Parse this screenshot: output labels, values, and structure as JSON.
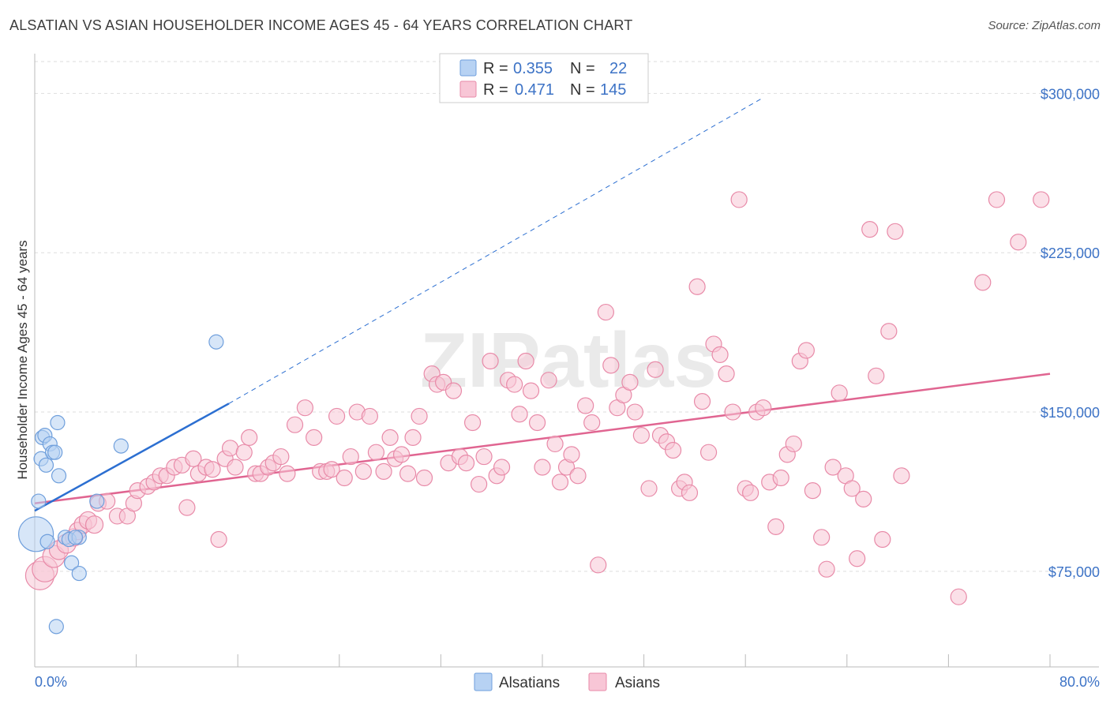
{
  "title": "ALSATIAN VS ASIAN HOUSEHOLDER INCOME AGES 45 - 64 YEARS CORRELATION CHART",
  "source": "Source: ZipAtlas.com",
  "watermark": "ZIPatlas",
  "colors": {
    "alsatian_fill": "#b7d2f3",
    "alsatian_stroke": "#6f9fdc",
    "alsatian_line": "#2c6fd1",
    "asian_fill": "#f8c6d6",
    "asian_stroke": "#e88aa8",
    "asian_line": "#e06591",
    "label_blue": "#3d73c6"
  },
  "legend_top": {
    "rows": [
      {
        "r_label": "R =",
        "r_value": "0.355",
        "n_label": "N =",
        "n_value": "22"
      },
      {
        "r_label": "R =",
        "r_value": "0.471",
        "n_label": "N =",
        "n_value": "145"
      }
    ]
  },
  "legend_bottom": [
    "Alsatians",
    "Asians"
  ],
  "chart_data": {
    "type": "scatter",
    "title": "ALSATIAN VS ASIAN HOUSEHOLDER INCOME AGES 45 - 64 YEARS CORRELATION CHART",
    "xlabel": "",
    "ylabel": "Householder Income Ages 45 - 64 years",
    "xlim": [
      0,
      80
    ],
    "ylim": [
      30000,
      315000
    ],
    "x_tick_labels": [
      "0.0%",
      "80.0%"
    ],
    "y_ticks": [
      75000,
      150000,
      225000,
      300000
    ],
    "y_tick_labels": [
      "$75,000",
      "$150,000",
      "$225,000",
      "$300,000"
    ],
    "grid": true,
    "series": [
      {
        "name": "Alsatians",
        "r": 0.355,
        "n": 22,
        "trend": {
          "x0": 0,
          "y0": 103500,
          "x1": 15.3,
          "y1": 154000,
          "dashed_to_x": 57.4,
          "dashed_to_y": 298000
        },
        "points": [
          [
            0.1,
            92500,
            22
          ],
          [
            0.3,
            108000,
            9
          ],
          [
            0.5,
            128000,
            9
          ],
          [
            0.6,
            138000,
            9
          ],
          [
            0.9,
            125000,
            9
          ],
          [
            0.8,
            139000,
            9
          ],
          [
            1.2,
            135000,
            9
          ],
          [
            1.4,
            131000,
            9
          ],
          [
            1.6,
            131000,
            9
          ],
          [
            1.8,
            145000,
            9
          ],
          [
            1.9,
            120000,
            9
          ],
          [
            1.0,
            89000,
            9
          ],
          [
            2.4,
            91000,
            9
          ],
          [
            2.7,
            90000,
            9
          ],
          [
            2.9,
            79000,
            9
          ],
          [
            3.5,
            91000,
            9
          ],
          [
            3.5,
            74000,
            9
          ],
          [
            1.7,
            49000,
            9
          ],
          [
            4.9,
            108000,
            9
          ],
          [
            6.8,
            134000,
            9
          ],
          [
            14.3,
            183000,
            9
          ],
          [
            3.2,
            91000,
            9
          ]
        ]
      },
      {
        "name": "Asians",
        "r": 0.471,
        "n": 145,
        "trend": {
          "x0": 0,
          "y0": 107000,
          "x1": 80,
          "y1": 168000
        },
        "points": [
          [
            0.4,
            73000,
            18
          ],
          [
            0.8,
            76000,
            16
          ],
          [
            1.5,
            82000,
            14
          ],
          [
            1.9,
            85000,
            12
          ],
          [
            2.5,
            88000,
            12
          ],
          [
            3.1,
            91000,
            11
          ],
          [
            3.4,
            94000,
            11
          ],
          [
            3.8,
            97000,
            11
          ],
          [
            4.2,
            99000,
            11
          ],
          [
            4.7,
            97000,
            11
          ],
          [
            5.0,
            107000,
            10
          ],
          [
            5.7,
            108000,
            10
          ],
          [
            6.5,
            101000,
            10
          ],
          [
            7.3,
            101000,
            10
          ],
          [
            7.8,
            107000,
            10
          ],
          [
            8.1,
            113000,
            10
          ],
          [
            8.9,
            115000,
            10
          ],
          [
            9.4,
            117000,
            10
          ],
          [
            9.9,
            120000,
            10
          ],
          [
            10.4,
            120000,
            10
          ],
          [
            11.0,
            124000,
            10
          ],
          [
            11.6,
            125000,
            10
          ],
          [
            12.0,
            105000,
            10
          ],
          [
            12.5,
            128000,
            10
          ],
          [
            12.9,
            121000,
            10
          ],
          [
            13.5,
            124000,
            10
          ],
          [
            14.0,
            123000,
            10
          ],
          [
            14.5,
            90000,
            10
          ],
          [
            15.0,
            128000,
            10
          ],
          [
            15.4,
            133000,
            10
          ],
          [
            15.8,
            124000,
            10
          ],
          [
            16.5,
            131000,
            10
          ],
          [
            16.9,
            138000,
            10
          ],
          [
            17.4,
            121000,
            10
          ],
          [
            17.8,
            121000,
            10
          ],
          [
            18.4,
            124000,
            10
          ],
          [
            18.8,
            126000,
            10
          ],
          [
            19.4,
            129000,
            10
          ],
          [
            19.9,
            121000,
            10
          ],
          [
            20.5,
            144000,
            10
          ],
          [
            21.3,
            152000,
            10
          ],
          [
            22.0,
            138000,
            10
          ],
          [
            22.5,
            122000,
            10
          ],
          [
            23.0,
            122000,
            10
          ],
          [
            23.4,
            123000,
            10
          ],
          [
            23.8,
            148000,
            10
          ],
          [
            24.4,
            119000,
            10
          ],
          [
            24.9,
            129000,
            10
          ],
          [
            25.4,
            150000,
            10
          ],
          [
            25.9,
            122000,
            10
          ],
          [
            26.4,
            148000,
            10
          ],
          [
            26.9,
            131000,
            10
          ],
          [
            27.5,
            122000,
            10
          ],
          [
            28.0,
            138000,
            10
          ],
          [
            28.4,
            128000,
            10
          ],
          [
            28.9,
            130000,
            10
          ],
          [
            29.4,
            121000,
            10
          ],
          [
            29.8,
            138000,
            10
          ],
          [
            30.3,
            148000,
            10
          ],
          [
            30.7,
            119000,
            10
          ],
          [
            31.3,
            168000,
            10
          ],
          [
            31.7,
            163000,
            10
          ],
          [
            32.2,
            164000,
            10
          ],
          [
            32.6,
            126000,
            10
          ],
          [
            33.0,
            160000,
            10
          ],
          [
            33.5,
            129000,
            10
          ],
          [
            34.0,
            126000,
            10
          ],
          [
            34.5,
            145000,
            10
          ],
          [
            35.0,
            116000,
            10
          ],
          [
            35.4,
            129000,
            10
          ],
          [
            35.9,
            174000,
            10
          ],
          [
            36.4,
            120000,
            10
          ],
          [
            36.8,
            124000,
            10
          ],
          [
            37.3,
            165000,
            10
          ],
          [
            37.8,
            163000,
            10
          ],
          [
            38.2,
            149000,
            10
          ],
          [
            38.7,
            174000,
            10
          ],
          [
            39.1,
            160000,
            10
          ],
          [
            39.6,
            145000,
            10
          ],
          [
            40.0,
            124000,
            10
          ],
          [
            40.5,
            165000,
            10
          ],
          [
            41.0,
            135000,
            10
          ],
          [
            41.4,
            117000,
            10
          ],
          [
            41.9,
            124000,
            10
          ],
          [
            42.3,
            130000,
            10
          ],
          [
            42.8,
            120000,
            10
          ],
          [
            43.4,
            153000,
            10
          ],
          [
            43.9,
            145000,
            10
          ],
          [
            44.4,
            78000,
            10
          ],
          [
            45.0,
            197000,
            10
          ],
          [
            45.4,
            172000,
            10
          ],
          [
            45.9,
            152000,
            10
          ],
          [
            46.4,
            158000,
            10
          ],
          [
            46.9,
            164000,
            10
          ],
          [
            47.3,
            150000,
            10
          ],
          [
            47.8,
            139000,
            10
          ],
          [
            48.4,
            114000,
            10
          ],
          [
            48.9,
            170000,
            10
          ],
          [
            49.3,
            139000,
            10
          ],
          [
            49.8,
            136000,
            10
          ],
          [
            50.3,
            132000,
            10
          ],
          [
            50.8,
            114000,
            10
          ],
          [
            51.2,
            117000,
            10
          ],
          [
            51.6,
            112000,
            10
          ],
          [
            52.2,
            209000,
            10
          ],
          [
            52.6,
            155000,
            10
          ],
          [
            53.1,
            131000,
            10
          ],
          [
            53.5,
            182000,
            10
          ],
          [
            54.0,
            177000,
            10
          ],
          [
            54.5,
            168000,
            10
          ],
          [
            55.0,
            150000,
            10
          ],
          [
            55.5,
            250000,
            10
          ],
          [
            56.0,
            114000,
            10
          ],
          [
            56.4,
            112000,
            10
          ],
          [
            56.9,
            150000,
            10
          ],
          [
            57.4,
            152000,
            10
          ],
          [
            57.9,
            117000,
            10
          ],
          [
            58.4,
            96000,
            10
          ],
          [
            58.8,
            119000,
            10
          ],
          [
            59.3,
            130000,
            10
          ],
          [
            59.8,
            135000,
            10
          ],
          [
            60.3,
            174000,
            10
          ],
          [
            60.8,
            179000,
            10
          ],
          [
            61.3,
            113000,
            10
          ],
          [
            62.0,
            91000,
            10
          ],
          [
            62.4,
            76000,
            10
          ],
          [
            62.9,
            124000,
            10
          ],
          [
            63.4,
            159000,
            10
          ],
          [
            63.9,
            120000,
            10
          ],
          [
            64.4,
            114000,
            10
          ],
          [
            64.8,
            81000,
            10
          ],
          [
            65.3,
            109000,
            10
          ],
          [
            65.8,
            236000,
            10
          ],
          [
            66.3,
            167000,
            10
          ],
          [
            66.8,
            90000,
            10
          ],
          [
            67.3,
            188000,
            10
          ],
          [
            67.8,
            235000,
            10
          ],
          [
            68.3,
            120000,
            10
          ],
          [
            72.8,
            63000,
            10
          ],
          [
            74.7,
            211000,
            10
          ],
          [
            75.8,
            250000,
            10
          ],
          [
            77.5,
            230000,
            10
          ],
          [
            79.3,
            250000,
            10
          ]
        ]
      }
    ]
  }
}
